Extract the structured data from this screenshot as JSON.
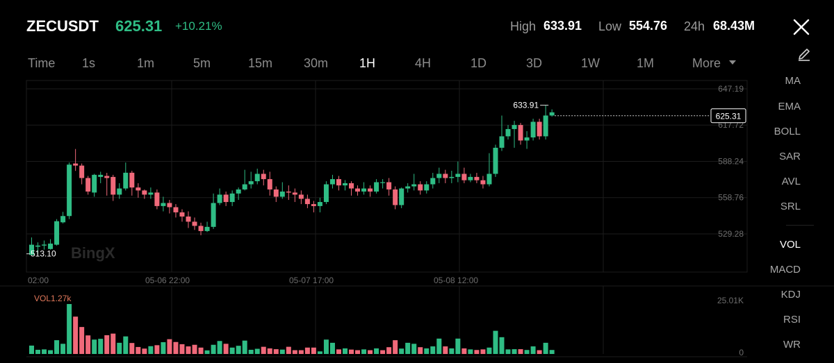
{
  "header": {
    "symbol": "ZECUSDT",
    "price": "625.31",
    "change": "+10.21%",
    "high_label": "High",
    "high_value": "633.91",
    "low_label": "Low",
    "low_value": "554.76",
    "vol24_label": "24h",
    "vol24_value": "68.43M"
  },
  "timeframes": {
    "time": "Time",
    "s1": "1s",
    "m1": "1m",
    "m5": "5m",
    "m15": "15m",
    "m30": "30m",
    "h1": "1H",
    "h4": "4H",
    "d1": "1D",
    "d3": "3D",
    "w1": "1W",
    "mo1": "1M",
    "more": "More",
    "active": "1H"
  },
  "indicators": {
    "ma": "MA",
    "ema": "EMA",
    "boll": "BOLL",
    "sar": "SAR",
    "avl": "AVL",
    "srl": "SRL",
    "vol": "VOL",
    "macd": "MACD",
    "kdj": "KDJ",
    "rsi": "RSI",
    "wr": "WR",
    "active": "VOL"
  },
  "watermark": "BingX",
  "colors": {
    "up": "#2fbd85",
    "down": "#f0697a",
    "background": "#000000",
    "grid": "#1c1c1c"
  },
  "chart_data": {
    "type": "candlestick",
    "interval": "1H",
    "price_axis_ticks": [
      "647.19",
      "617.72",
      "588.24",
      "558.76",
      "529.28"
    ],
    "price_axis_values": [
      647.19,
      617.72,
      588.24,
      558.76,
      529.28
    ],
    "time_axis_ticks": [
      "02:00",
      "05-06 22:00",
      "05-07 17:00",
      "05-08 12:00"
    ],
    "max_marker": "633.91",
    "min_marker": "513.10",
    "last_price_tag": "625.31",
    "volume": {
      "label": "VOL1.27k",
      "axis_max": "25.01K",
      "axis_min": "0"
    },
    "candles": [
      [
        512.2,
        520.5,
        526.4,
        512.2
      ],
      [
        518.9,
        519.8,
        522.4,
        513.1
      ],
      [
        519.8,
        520.6,
        523.9,
        516.5
      ],
      [
        517.0,
        521.4,
        525.0,
        516.5
      ],
      [
        520.5,
        539.6,
        541.3,
        519.8
      ],
      [
        538.7,
        543.8,
        547.2,
        537.8
      ],
      [
        543.8,
        585.6,
        587.3,
        541.3
      ],
      [
        586.5,
        584.8,
        598.3,
        580.5
      ],
      [
        584.8,
        574.7,
        586.5,
        569.6
      ],
      [
        574.7,
        563.7,
        576.4,
        561.2
      ],
      [
        562.9,
        577.3,
        578.1,
        559.5
      ],
      [
        575.6,
        577.3,
        579.8,
        570.5
      ],
      [
        576.4,
        574.7,
        578.9,
        560.4
      ],
      [
        575.6,
        561.2,
        577.3,
        556.1
      ],
      [
        561.2,
        566.2,
        570.5,
        557.8
      ],
      [
        566.2,
        579.0,
        587.3,
        564.6
      ],
      [
        579.0,
        567.0,
        580.6,
        560.4
      ],
      [
        567.0,
        564.6,
        570.5,
        558.7
      ],
      [
        564.6,
        561.2,
        565.4,
        557.8
      ],
      [
        561.2,
        562.9,
        567.0,
        557.8
      ],
      [
        562.9,
        551.9,
        565.4,
        549.3
      ],
      [
        551.9,
        554.4,
        559.5,
        547.6
      ],
      [
        554.4,
        551.0,
        556.9,
        545.9
      ],
      [
        551.0,
        546.8,
        553.5,
        542.6
      ],
      [
        546.8,
        543.4,
        549.3,
        539.2
      ],
      [
        543.4,
        539.2,
        547.6,
        534.1
      ],
      [
        539.2,
        535.8,
        542.6,
        532.5
      ],
      [
        535.8,
        531.6,
        538.4,
        528.2
      ],
      [
        531.6,
        535.0,
        539.2,
        530.8
      ],
      [
        535.0,
        554.4,
        562.1,
        533.3
      ],
      [
        554.4,
        561.2,
        566.2,
        552.7
      ],
      [
        561.2,
        555.2,
        563.7,
        551.9
      ],
      [
        555.2,
        562.1,
        564.6,
        551.9
      ],
      [
        562.1,
        565.4,
        567.0,
        556.9
      ],
      [
        565.4,
        569.6,
        581.4,
        564.6
      ],
      [
        569.6,
        572.1,
        579.8,
        566.2
      ],
      [
        572.1,
        578.1,
        582.3,
        569.6
      ],
      [
        578.1,
        573.8,
        581.4,
        568.7
      ],
      [
        573.8,
        565.4,
        579.8,
        560.4
      ],
      [
        565.4,
        559.5,
        567.9,
        555.2
      ],
      [
        559.5,
        563.7,
        571.3,
        557.8
      ],
      [
        563.7,
        562.9,
        568.7,
        556.9
      ],
      [
        562.9,
        561.2,
        566.2,
        555.2
      ],
      [
        561.2,
        557.8,
        564.6,
        553.5
      ],
      [
        557.8,
        553.5,
        561.2,
        550.2
      ],
      [
        553.5,
        551.9,
        556.1,
        546.8
      ],
      [
        551.9,
        555.2,
        558.7,
        546.8
      ],
      [
        555.2,
        569.6,
        572.1,
        553.5
      ],
      [
        569.6,
        573.8,
        577.3,
        566.2
      ],
      [
        573.8,
        568.7,
        576.4,
        564.6
      ],
      [
        568.7,
        570.5,
        573.0,
        564.6
      ],
      [
        570.5,
        566.2,
        572.1,
        560.4
      ],
      [
        566.2,
        563.7,
        568.7,
        560.4
      ],
      [
        563.7,
        566.2,
        571.3,
        561.2
      ],
      [
        566.2,
        563.7,
        568.7,
        559.5
      ],
      [
        563.7,
        571.3,
        573.8,
        562.1
      ],
      [
        571.3,
        571.3,
        573.8,
        566.2
      ],
      [
        571.3,
        565.4,
        574.7,
        560.4
      ],
      [
        565.4,
        552.7,
        567.9,
        549.3
      ],
      [
        552.7,
        566.2,
        567.0,
        550.2
      ],
      [
        566.2,
        567.9,
        570.5,
        562.9
      ],
      [
        567.9,
        569.6,
        578.1,
        564.6
      ],
      [
        569.6,
        564.6,
        572.1,
        561.2
      ],
      [
        564.6,
        569.6,
        572.1,
        562.1
      ],
      [
        569.6,
        574.7,
        578.9,
        566.2
      ],
      [
        574.7,
        578.1,
        583.1,
        570.5
      ],
      [
        578.1,
        574.7,
        581.4,
        570.5
      ],
      [
        574.7,
        575.6,
        580.6,
        570.5
      ],
      [
        575.6,
        578.1,
        588.1,
        571.3
      ],
      [
        578.1,
        572.9,
        583.1,
        570.5
      ],
      [
        572.9,
        575.6,
        578.1,
        571.3
      ],
      [
        575.6,
        572.9,
        578.9,
        570.5
      ],
      [
        572.9,
        569.6,
        576.4,
        566.2
      ],
      [
        569.6,
        578.1,
        594.9,
        567.9
      ],
      [
        578.1,
        599.3,
        601.8,
        575.6
      ],
      [
        599.3,
        608.6,
        625.5,
        596.7
      ],
      [
        608.6,
        614.5,
        617.8,
        606.0
      ],
      [
        614.5,
        617.8,
        621.2,
        599.3
      ],
      [
        617.8,
        605.2,
        619.5,
        601.8
      ],
      [
        605.2,
        607.7,
        612.8,
        598.4
      ],
      [
        607.7,
        620.4,
        622.9,
        605.2
      ],
      [
        620.4,
        608.6,
        622.9,
        606.0
      ],
      [
        608.6,
        625.5,
        633.9,
        606.0
      ],
      [
        625.5,
        628.1,
        630.5,
        624.6
      ]
    ],
    "volumes": [
      4.2,
      2.1,
      2.3,
      1.9,
      6.9,
      5.1,
      25.0,
      18.7,
      13.5,
      9.3,
      7.2,
      7.6,
      9.4,
      10.2,
      5.6,
      8.8,
      5.5,
      3.5,
      2.7,
      3.9,
      4.4,
      5.9,
      7.4,
      6.0,
      4.9,
      3.8,
      4.6,
      3.2,
      1.8,
      4.6,
      6.5,
      5.1,
      3.2,
      4.1,
      6.7,
      2.1,
      2.6,
      3.6,
      2.8,
      2.4,
      2.2,
      3.6,
      1.9,
      1.9,
      3.2,
      3.2,
      1.3,
      7.2,
      5.6,
      2.3,
      2.8,
      2.2,
      1.9,
      2.3,
      1.9,
      2.8,
      1.9,
      3.4,
      6.9,
      2.7,
      5.6,
      5.1,
      3.4,
      2.8,
      3.8,
      7.7,
      3.8,
      2.8,
      7.7,
      2.8,
      2.3,
      2.0,
      2.3,
      3.2,
      11.6,
      8.4,
      2.3,
      2.4,
      2.4,
      2.0,
      3.8,
      1.9,
      5.6,
      2.0
    ],
    "volume_up": [
      true,
      true,
      true,
      true,
      true,
      true,
      true,
      false,
      false,
      false,
      true,
      true,
      false,
      false,
      true,
      true,
      false,
      false,
      false,
      true,
      false,
      true,
      false,
      false,
      false,
      false,
      false,
      false,
      true,
      true,
      true,
      false,
      true,
      true,
      true,
      true,
      true,
      false,
      false,
      false,
      true,
      false,
      false,
      false,
      false,
      false,
      true,
      true,
      true,
      false,
      true,
      false,
      false,
      true,
      false,
      true,
      false,
      false,
      false,
      true,
      true,
      true,
      false,
      true,
      true,
      true,
      false,
      true,
      true,
      false,
      true,
      false,
      false,
      true,
      true,
      true,
      true,
      true,
      false,
      true,
      true,
      false,
      true,
      true
    ]
  }
}
